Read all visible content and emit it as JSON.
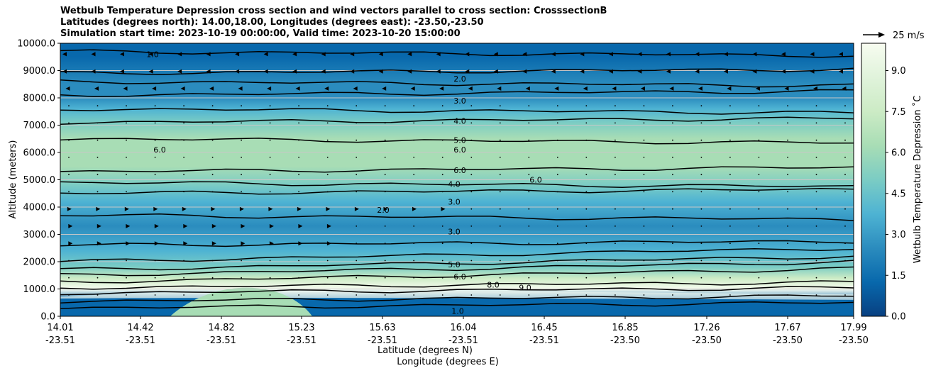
{
  "chart_data": {
    "type": "heatmap",
    "title_lines": [
      "Wetbulb Temperature Depression cross section and wind vectors parallel to cross section: CrosssectionB",
      "Latitudes (degrees north): 14.00,18.00, Longitudes (degrees east): -23.50,-23.50",
      "Simulation start time: 2023-10-19 00:00:00, Valid time: 2023-10-20 15:00:00"
    ],
    "ylabel": "Altitude (meters)",
    "xlabel": "Latitude (degrees N)",
    "xlabel2": "Longitude (degrees E)",
    "ylim": [
      0,
      10000
    ],
    "y_ticks": [
      "0.0",
      "1000.0",
      "2000.0",
      "3000.0",
      "4000.0",
      "5000.0",
      "6000.0",
      "7000.0",
      "8000.0",
      "9000.0",
      "10000.0"
    ],
    "x_tick_lat": [
      "14.01",
      "14.42",
      "14.82",
      "15.23",
      "15.63",
      "16.04",
      "16.45",
      "16.85",
      "17.26",
      "17.67",
      "17.99"
    ],
    "x_tick_lon": [
      "-23.51",
      "-23.51",
      "-23.51",
      "-23.51",
      "-23.51",
      "-23.51",
      "-23.51",
      "-23.50",
      "-23.50",
      "-23.50",
      "-23.50"
    ],
    "colorbar": {
      "label": "Wetbulb Temperature Depression ˚C",
      "range": [
        0,
        10
      ],
      "ticks": [
        "0.0",
        "1.5",
        "3.0",
        "4.5",
        "6.0",
        "7.5",
        "9.0"
      ]
    },
    "quiver_key": "25 m/s",
    "grid": "horizontal",
    "contour_levels": [
      1,
      2,
      3,
      4,
      5,
      6,
      7,
      8,
      9
    ],
    "contour_labels": [
      "1.0",
      "2.0",
      "3.0",
      "4.0",
      "5.0",
      "6.0",
      "6.0",
      "6.0",
      "6.0",
      "4.0",
      "3.0",
      "2.0",
      "3.0",
      "5.0",
      "6.0",
      "8.0",
      "9.0",
      "1.0"
    ],
    "layers": [
      {
        "altitude": 9500,
        "depression": 1.0
      },
      {
        "altitude": 8500,
        "depression": 2.0
      },
      {
        "altitude": 8000,
        "depression": 3.0
      },
      {
        "altitude": 7600,
        "depression": 4.0
      },
      {
        "altitude": 7100,
        "depression": 5.0
      },
      {
        "altitude": 6500,
        "depression": 6.0
      },
      {
        "altitude": 5500,
        "depression": 6.5
      },
      {
        "altitude": 4800,
        "depression": 5.0
      },
      {
        "altitude": 4200,
        "depression": 3.5
      },
      {
        "altitude": 3300,
        "depression": 2.5
      },
      {
        "altitude": 2400,
        "depression": 3.5
      },
      {
        "altitude": 1800,
        "depression": 5.0
      },
      {
        "altitude": 1400,
        "depression": 7.0
      },
      {
        "altitude": 1000,
        "depression": 9.5
      },
      {
        "altitude": 500,
        "depression": 1.0
      }
    ],
    "colors": {
      "scale": [
        "#084081",
        "#0868ac",
        "#2b8cbe",
        "#4eb3d3",
        "#7bccc4",
        "#a8ddb5",
        "#ccebc5",
        "#e0f3db",
        "#f7fcf0"
      ],
      "contour": "#000000",
      "grid": "#c8c8c8"
    }
  }
}
